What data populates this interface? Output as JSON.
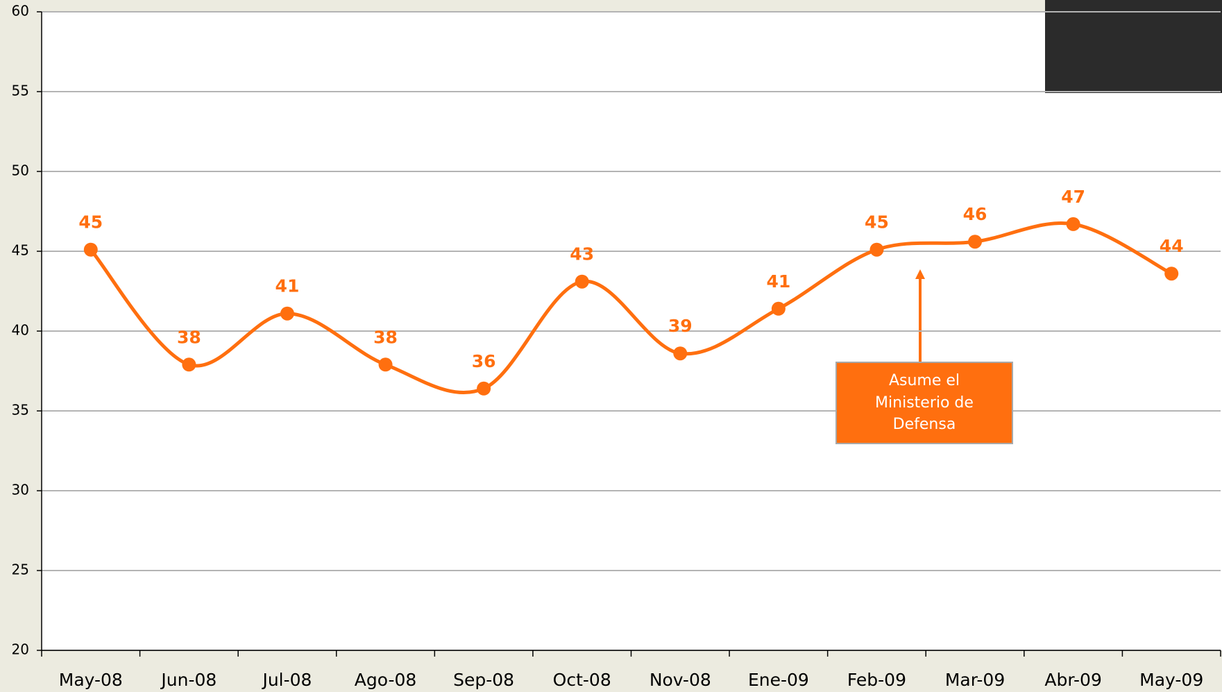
{
  "chart_data": {
    "type": "line",
    "categories": [
      "May-08",
      "Jun-08",
      "Jul-08",
      "Ago-08",
      "Sep-08",
      "Oct-08",
      "Nov-08",
      "Ene-09",
      "Feb-09",
      "Mar-09",
      "Abr-09",
      "May-09"
    ],
    "series": [
      {
        "color": "#ff6f0f",
        "values": [
          45.1,
          37.9,
          41.1,
          37.9,
          36.4,
          43.1,
          38.6,
          41.4,
          45.1,
          45.6,
          46.7,
          43.6
        ],
        "value_labels": [
          "45",
          "38",
          "41",
          "38",
          "36",
          "43",
          "39",
          "41",
          "45",
          "46",
          "47",
          "44"
        ]
      }
    ],
    "ylim": [
      20,
      60
    ],
    "yticks": [
      20,
      25,
      30,
      35,
      40,
      45,
      50,
      55,
      60
    ],
    "grid": true,
    "annotation": "Asume el Ministerio de Defensa"
  }
}
